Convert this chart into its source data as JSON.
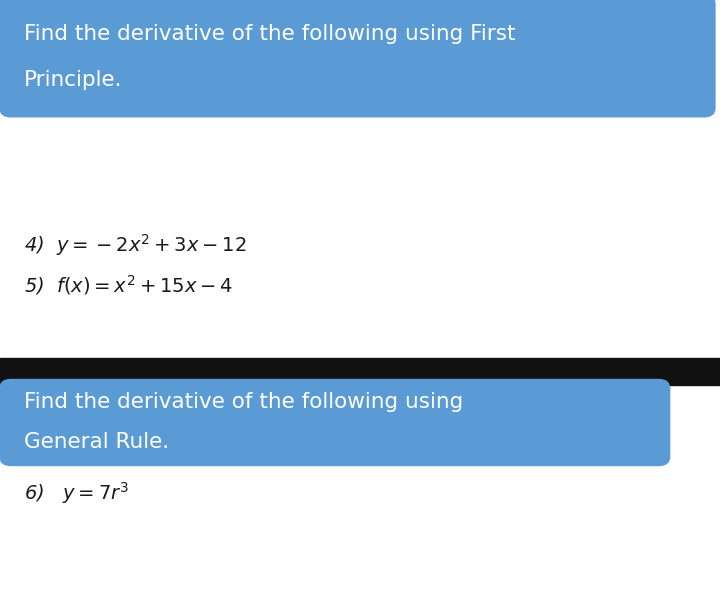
{
  "bg_color": "#ffffff",
  "black_bar_color": "#111111",
  "blue_box_color": "#5b9bd5",
  "blue_box_text_color": "#ffffff",
  "body_text_color": "#1a1a1a",
  "header1_line1": "Find the derivative of the following using First",
  "header1_line2": "Principle.",
  "header2_line1": "Find the derivative of the following using",
  "header2_line2": "General Rule.",
  "item4": "4)  $y = -2x^2 + 3x - 12$",
  "item5": "5)  $f(x) = x^2 + 15x - 4$",
  "item6": "6)   $y = 7r^3$",
  "header_fontsize": 15.5,
  "item_fontsize": 14,
  "fig_width": 7.2,
  "fig_height": 5.93,
  "dpi": 100
}
